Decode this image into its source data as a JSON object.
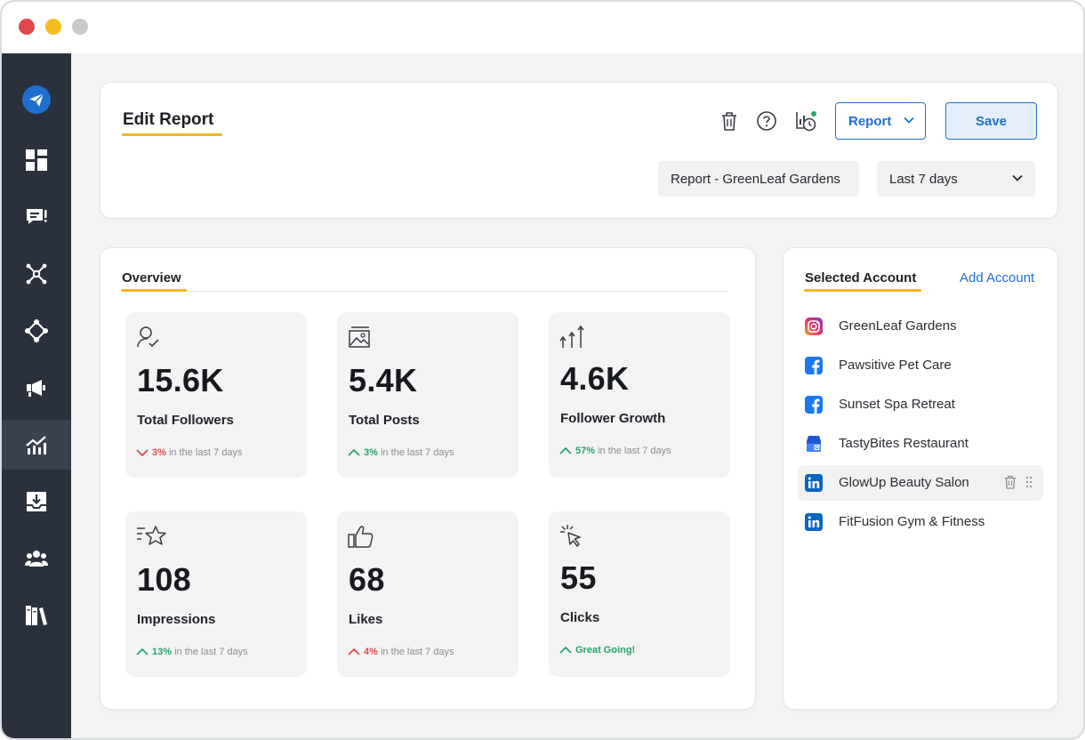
{
  "window": {
    "controls": [
      "close",
      "minimize",
      "zoom"
    ]
  },
  "sidebar": {
    "items": [
      {
        "name": "logo-paper-plane-icon"
      },
      {
        "name": "dashboard-icon"
      },
      {
        "name": "messages-icon"
      },
      {
        "name": "network-icon"
      },
      {
        "name": "integrations-icon"
      },
      {
        "name": "megaphone-icon"
      },
      {
        "name": "analytics-icon",
        "active": true
      },
      {
        "name": "download-inbox-icon"
      },
      {
        "name": "team-icon"
      },
      {
        "name": "library-icon"
      }
    ]
  },
  "header": {
    "title": "Edit Report",
    "icons": [
      "trash-icon",
      "help-icon",
      "schedule-history-icon"
    ],
    "report_button_label": "Report",
    "save_button_label": "Save",
    "report_name": "Report - GreenLeaf Gardens",
    "period": "Last 7 days"
  },
  "overview": {
    "title": "Overview",
    "metrics": [
      {
        "value": "15.6K",
        "label": "Total Followers",
        "trend": "down",
        "pct": "3%",
        "suffix": " in the last 7 days",
        "icon": "user-check-icon"
      },
      {
        "value": "5.4K",
        "label": "Total Posts",
        "trend": "up",
        "pct": "3%",
        "suffix": " in the last 7 days",
        "icon": "image-post-icon"
      },
      {
        "value": "4.6K",
        "label": "Follower Growth",
        "trend": "up",
        "pct": "57%",
        "suffix": " in the last 7 days",
        "icon": "growth-arrows-icon"
      },
      {
        "value": "108",
        "label": "Impressions",
        "trend": "up",
        "pct": "13%",
        "suffix": " in the last 7 days",
        "icon": "star-lines-icon"
      },
      {
        "value": "68",
        "label": "Likes",
        "trend": "down",
        "pct": "4%",
        "suffix": " in the last 7 days",
        "icon": "thumbs-up-icon"
      },
      {
        "value": "55",
        "label": "Clicks",
        "trend": "up",
        "pct": "",
        "suffix": "",
        "great": "Great Going!",
        "icon": "cursor-click-icon"
      }
    ]
  },
  "accounts": {
    "title": "Selected Account",
    "add_label": "Add Account",
    "items": [
      {
        "name": "GreenLeaf Gardens",
        "platform": "instagram"
      },
      {
        "name": "Pawsitive Pet Care",
        "platform": "facebook"
      },
      {
        "name": "Sunset Spa Retreat",
        "platform": "facebook"
      },
      {
        "name": "TastyBites Restaurant",
        "platform": "google-business"
      },
      {
        "name": "GlowUp Beauty Salon",
        "platform": "linkedin",
        "active": true
      },
      {
        "name": "FitFusion Gym & Fitness",
        "platform": "linkedin"
      }
    ]
  },
  "colors": {
    "accent": "#1f6fd1",
    "underline": "#f5b719",
    "up": "#27a36b",
    "down": "#e0484d",
    "sidebar": "#2a313c"
  }
}
